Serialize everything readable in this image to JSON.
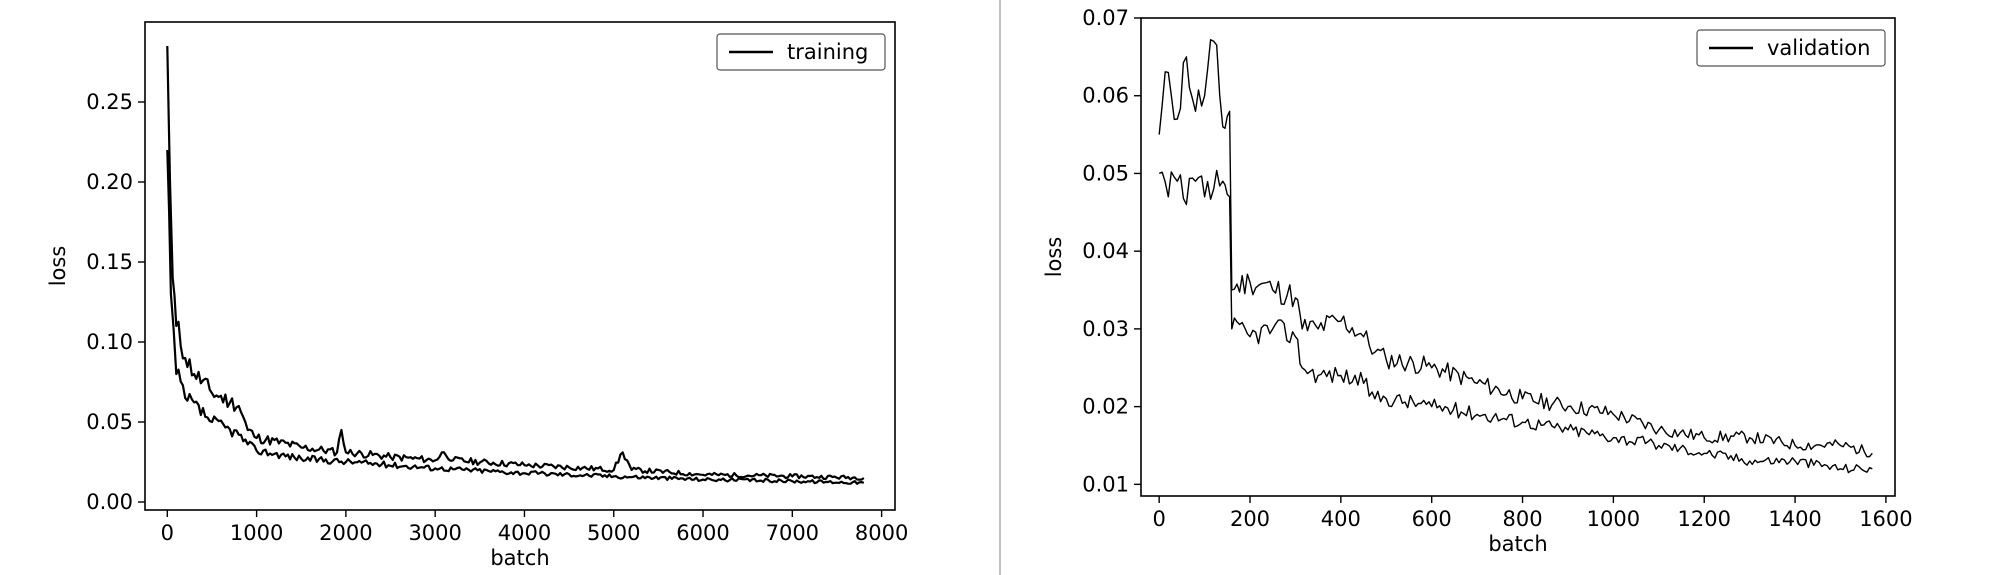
{
  "chart_data": [
    {
      "type": "line",
      "xlabel": "batch",
      "ylabel": "loss",
      "xlim": [
        -250,
        8150
      ],
      "ylim": [
        -0.005,
        0.3
      ],
      "xticks": [
        0,
        1000,
        2000,
        3000,
        4000,
        5000,
        6000,
        7000,
        8000
      ],
      "xtick_labels": [
        "0",
        "1000",
        "2000",
        "3000",
        "4000",
        "5000",
        "6000",
        "7000",
        "8000"
      ],
      "yticks": [
        0.0,
        0.05,
        0.1,
        0.15,
        0.2,
        0.25
      ],
      "ytick_labels": [
        "0.00",
        "0.05",
        "0.10",
        "0.15",
        "0.20",
        "0.25"
      ],
      "grid": false,
      "legend_position": "top-right",
      "series": [
        {
          "name": "training",
          "upper": [
            [
              0,
              0.285
            ],
            [
              30,
              0.2
            ],
            [
              60,
              0.14
            ],
            [
              100,
              0.11
            ],
            [
              200,
              0.09
            ],
            [
              300,
              0.08
            ],
            [
              500,
              0.068
            ],
            [
              700,
              0.062
            ],
            [
              800,
              0.06
            ],
            [
              900,
              0.045
            ],
            [
              1000,
              0.04
            ],
            [
              1500,
              0.034
            ],
            [
              1900,
              0.031
            ],
            [
              1950,
              0.045
            ],
            [
              2000,
              0.031
            ],
            [
              2500,
              0.028
            ],
            [
              3000,
              0.026
            ],
            [
              3100,
              0.031
            ],
            [
              3200,
              0.026
            ],
            [
              4000,
              0.023
            ],
            [
              5000,
              0.02
            ],
            [
              5100,
              0.031
            ],
            [
              5200,
              0.02
            ],
            [
              6000,
              0.017
            ],
            [
              7000,
              0.016
            ],
            [
              7800,
              0.015
            ]
          ],
          "lower": [
            [
              0,
              0.22
            ],
            [
              40,
              0.13
            ],
            [
              100,
              0.08
            ],
            [
              200,
              0.065
            ],
            [
              500,
              0.05
            ],
            [
              800,
              0.042
            ],
            [
              900,
              0.036
            ],
            [
              1000,
              0.032
            ],
            [
              1500,
              0.027
            ],
            [
              2000,
              0.025
            ],
            [
              3000,
              0.021
            ],
            [
              4000,
              0.018
            ],
            [
              5000,
              0.016
            ],
            [
              6000,
              0.014
            ],
            [
              7000,
              0.013
            ],
            [
              7800,
              0.012
            ]
          ]
        }
      ]
    },
    {
      "type": "line",
      "xlabel": "batch",
      "ylabel": "loss",
      "xlim": [
        -40,
        1620
      ],
      "ylim": [
        0.0085,
        0.07
      ],
      "xticks": [
        0,
        200,
        400,
        600,
        800,
        1000,
        1200,
        1400,
        1600
      ],
      "xtick_labels": [
        "0",
        "200",
        "400",
        "600",
        "800",
        "1000",
        "1200",
        "1400",
        "1600"
      ],
      "yticks": [
        0.01,
        0.02,
        0.03,
        0.04,
        0.05,
        0.06,
        0.07
      ],
      "ytick_labels": [
        "0.01",
        "0.02",
        "0.03",
        "0.04",
        "0.05",
        "0.06",
        "0.07"
      ],
      "grid": false,
      "legend_position": "top-right",
      "series": [
        {
          "name": "validation",
          "upper": [
            [
              0,
              0.055
            ],
            [
              20,
              0.063
            ],
            [
              40,
              0.057
            ],
            [
              60,
              0.065
            ],
            [
              80,
              0.058
            ],
            [
              100,
              0.06
            ],
            [
              120,
              0.067
            ],
            [
              140,
              0.056
            ],
            [
              155,
              0.058
            ],
            [
              160,
              0.035
            ],
            [
              200,
              0.036
            ],
            [
              250,
              0.035
            ],
            [
              300,
              0.034
            ],
            [
              315,
              0.03
            ],
            [
              350,
              0.03
            ],
            [
              400,
              0.031
            ],
            [
              450,
              0.029
            ],
            [
              475,
              0.027
            ],
            [
              500,
              0.026
            ],
            [
              600,
              0.025
            ],
            [
              700,
              0.023
            ],
            [
              800,
              0.021
            ],
            [
              900,
              0.02
            ],
            [
              1000,
              0.019
            ],
            [
              1100,
              0.017
            ],
            [
              1200,
              0.016
            ],
            [
              1300,
              0.016
            ],
            [
              1400,
              0.015
            ],
            [
              1500,
              0.015
            ],
            [
              1570,
              0.014
            ]
          ],
          "lower": [
            [
              0,
              0.05
            ],
            [
              20,
              0.047
            ],
            [
              40,
              0.049
            ],
            [
              60,
              0.046
            ],
            [
              80,
              0.049
            ],
            [
              100,
              0.047
            ],
            [
              120,
              0.048
            ],
            [
              140,
              0.049
            ],
            [
              155,
              0.047
            ],
            [
              160,
              0.03
            ],
            [
              200,
              0.029
            ],
            [
              250,
              0.03
            ],
            [
              300,
              0.029
            ],
            [
              315,
              0.025
            ],
            [
              350,
              0.024
            ],
            [
              400,
              0.024
            ],
            [
              450,
              0.023
            ],
            [
              475,
              0.021
            ],
            [
              500,
              0.021
            ],
            [
              600,
              0.02
            ],
            [
              700,
              0.019
            ],
            [
              800,
              0.018
            ],
            [
              900,
              0.017
            ],
            [
              1000,
              0.016
            ],
            [
              1100,
              0.015
            ],
            [
              1200,
              0.014
            ],
            [
              1300,
              0.013
            ],
            [
              1400,
              0.013
            ],
            [
              1500,
              0.012
            ],
            [
              1570,
              0.012
            ]
          ]
        }
      ]
    }
  ]
}
